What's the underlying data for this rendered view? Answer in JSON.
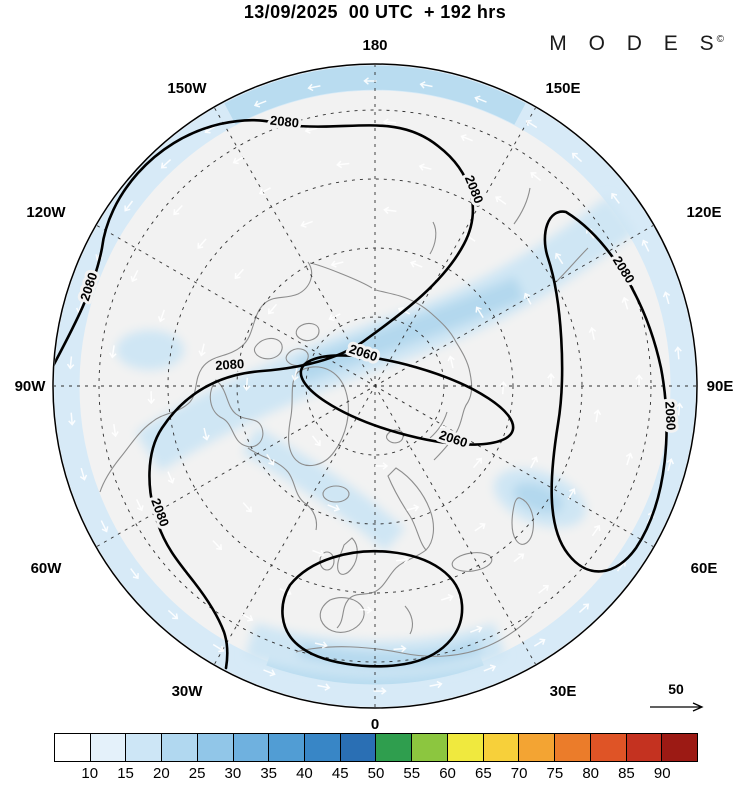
{
  "header": {
    "title": "13/09/2025  00 UTC  + 192 hrs",
    "brand": "M O D E S",
    "brand_mark": "©"
  },
  "map": {
    "lon_labels": [
      "180",
      "150W",
      "150E",
      "120W",
      "120E",
      "90W",
      "90E",
      "60W",
      "60E",
      "30W",
      "30E",
      "0"
    ],
    "contour_labels": [
      "2080",
      "2080",
      "2080",
      "2080",
      "2080",
      "2080",
      "2080",
      "2060",
      "2060"
    ],
    "wind_ref_label": "50"
  },
  "colorbar": {
    "tick_labels": [
      "10",
      "15",
      "20",
      "25",
      "30",
      "35",
      "40",
      "45",
      "50",
      "55",
      "60",
      "65",
      "70",
      "75",
      "80",
      "85",
      "90"
    ],
    "colors": [
      "#ffffff",
      "#e4f1fa",
      "#cde6f6",
      "#b1d8f0",
      "#91c6e8",
      "#6fb1df",
      "#519dd4",
      "#3886c6",
      "#2a6fb4",
      "#2f9e4e",
      "#8cc63f",
      "#f0e93e",
      "#f7d03a",
      "#f3a433",
      "#eb7c2a",
      "#df5426",
      "#c43220",
      "#9c1a14"
    ]
  },
  "chart_data": {
    "type": "map-contour",
    "title": "13/09/2025 00 UTC + 192 hrs",
    "brand": "MODES",
    "projection": "north-polar-stereographic",
    "meridian_interval_deg": 30,
    "longitude_labels": [
      "180",
      "150W",
      "120W",
      "90W",
      "60W",
      "30W",
      "0",
      "30E",
      "60E",
      "90E",
      "120E",
      "150E"
    ],
    "contour_levels_labeled": [
      2060,
      2080
    ],
    "contour_label_instances": [
      {
        "value": 2080,
        "region": "top-left"
      },
      {
        "value": 2080,
        "region": "top-right"
      },
      {
        "value": 2080,
        "region": "left-edge"
      },
      {
        "value": 2080,
        "region": "center-left"
      },
      {
        "value": 2080,
        "region": "right-upper"
      },
      {
        "value": 2080,
        "region": "right-edge"
      },
      {
        "value": 2080,
        "region": "lower-left"
      },
      {
        "value": 2060,
        "region": "center"
      },
      {
        "value": 2060,
        "region": "center-right"
      }
    ],
    "shading_scale": {
      "levels": [
        10,
        15,
        20,
        25,
        30,
        35,
        40,
        45,
        50,
        55,
        60,
        65,
        70,
        75,
        80,
        85,
        90
      ],
      "colors": [
        "#ffffff",
        "#e4f1fa",
        "#cde6f6",
        "#b1d8f0",
        "#91c6e8",
        "#6fb1df",
        "#519dd4",
        "#3886c6",
        "#2a6fb4",
        "#2f9e4e",
        "#8cc63f",
        "#f0e93e",
        "#f7d03a",
        "#f3a433",
        "#eb7c2a",
        "#df5426",
        "#c43220",
        "#9c1a14"
      ],
      "orientation": "horizontal",
      "position": "bottom"
    },
    "wind_reference_arrow_value": 50
  }
}
